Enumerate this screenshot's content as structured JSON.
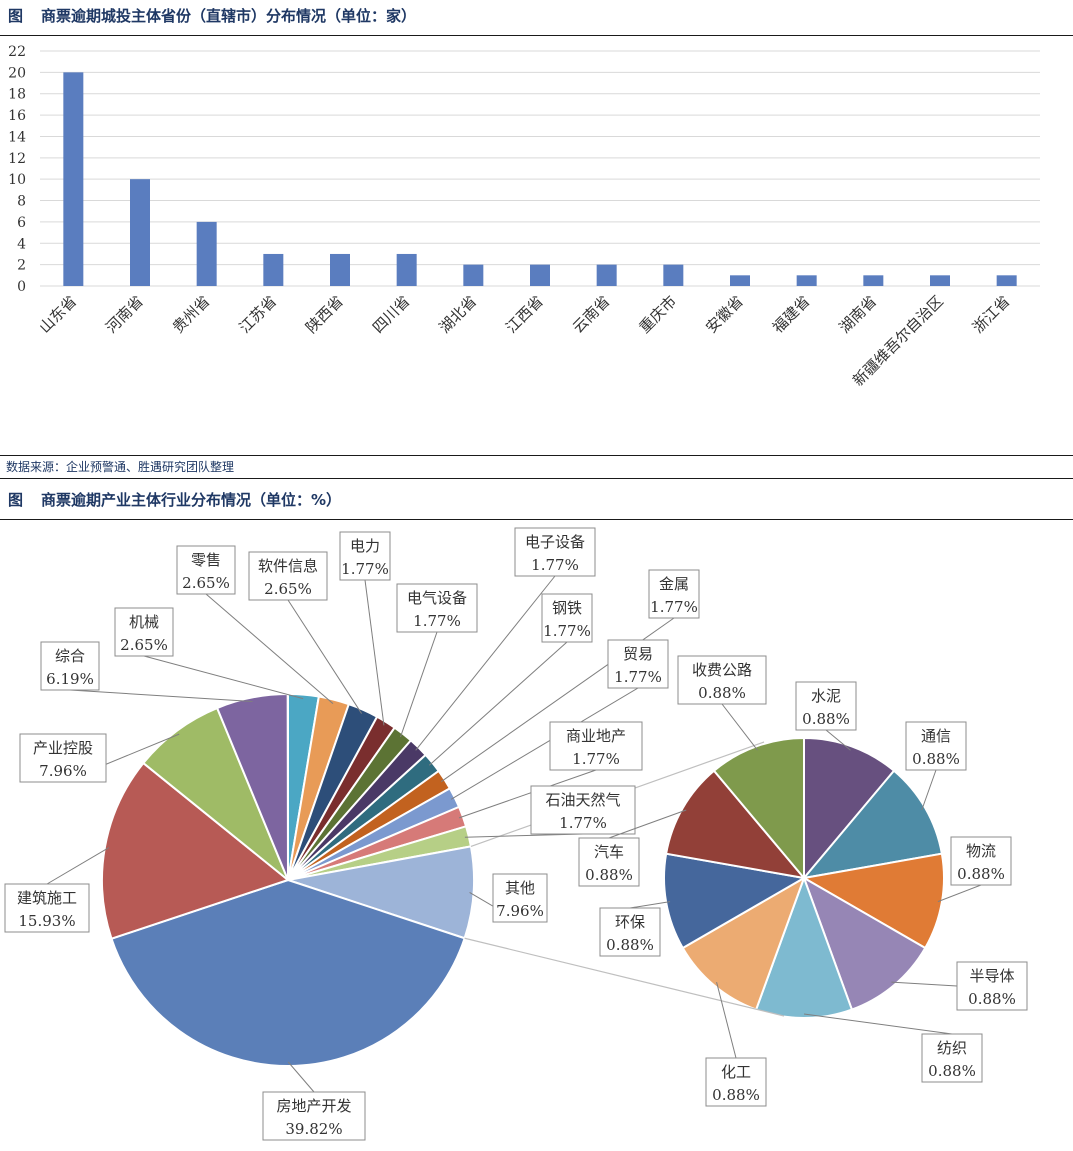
{
  "figure1": {
    "tag": "图",
    "title": "商票逾期城投主体省份（直辖市）分布情况（单位：家）"
  },
  "figure2": {
    "tag": "图",
    "title": "商票逾期产业主体行业分布情况（单位：%）"
  },
  "source_note": "数据来源：企业预警通、胜遇研究团队整理",
  "colors": {
    "bar": "#5a7dbf",
    "title": "#1f3864",
    "grid": "#d9d9d9"
  },
  "chart_data": [
    {
      "type": "bar",
      "categories": [
        "山东省",
        "河南省",
        "贵州省",
        "江苏省",
        "陕西省",
        "四川省",
        "湖北省",
        "江西省",
        "云南省",
        "重庆市",
        "安徽省",
        "福建省",
        "湖南省",
        "新疆维吾尔自治区",
        "浙江省"
      ],
      "values": [
        20,
        10,
        6,
        3,
        3,
        3,
        2,
        2,
        2,
        2,
        1,
        1,
        1,
        1,
        1
      ],
      "ylim": [
        0,
        22
      ],
      "yticks": [
        "0",
        "2",
        "4",
        "6",
        "8",
        "10",
        "12",
        "14",
        "16",
        "18",
        "20",
        "22"
      ],
      "grid": true
    },
    {
      "type": "pie",
      "subtype": "pie-of-pie",
      "main": [
        {
          "label": "房地产开发",
          "value": "39.82%",
          "pct": 39.82,
          "color": "#5b7fb8"
        },
        {
          "label": "建筑施工",
          "value": "15.93%",
          "pct": 15.93,
          "color": "#b75a55"
        },
        {
          "label": "产业控股",
          "value": "7.96%",
          "pct": 7.96,
          "color": "#9fbb66"
        },
        {
          "label": "综合",
          "value": "6.19%",
          "pct": 6.19,
          "color": "#7d65a0"
        },
        {
          "label": "机械",
          "value": "2.65%",
          "pct": 2.65,
          "color": "#4ba7c4"
        },
        {
          "label": "零售",
          "value": "2.65%",
          "pct": 2.65,
          "color": "#e89b57"
        },
        {
          "label": "软件信息",
          "value": "2.65%",
          "pct": 2.65,
          "color": "#2d4e79"
        },
        {
          "label": "电力",
          "value": "1.77%",
          "pct": 1.77,
          "color": "#7a2e2e"
        },
        {
          "label": "电气设备",
          "value": "1.77%",
          "pct": 1.77,
          "color": "#5c7334"
        },
        {
          "label": "电子设备",
          "value": "1.77%",
          "pct": 1.77,
          "color": "#4a3966"
        },
        {
          "label": "钢铁",
          "value": "1.77%",
          "pct": 1.77,
          "color": "#2f6c7f"
        },
        {
          "label": "金属",
          "value": "1.77%",
          "pct": 1.77,
          "color": "#c2621f"
        },
        {
          "label": "贸易",
          "value": "1.77%",
          "pct": 1.77,
          "color": "#7b99cf"
        },
        {
          "label": "商业地产",
          "value": "1.77%",
          "pct": 1.77,
          "color": "#d67a78"
        },
        {
          "label": "石油天然气",
          "value": "1.77%",
          "pct": 1.77,
          "color": "#b6cf86"
        },
        {
          "label": "其他",
          "value": "7.96%",
          "pct": 7.96,
          "color": "#9db4d8"
        }
      ],
      "secondary": [
        {
          "label": "水泥",
          "value": "0.88%",
          "pct": 0.88,
          "color": "#67507f"
        },
        {
          "label": "通信",
          "value": "0.88%",
          "pct": 0.88,
          "color": "#4e8ca6"
        },
        {
          "label": "物流",
          "value": "0.88%",
          "pct": 0.88,
          "color": "#e07b35"
        },
        {
          "label": "半导体",
          "value": "0.88%",
          "pct": 0.88,
          "color": "#9686b5"
        },
        {
          "label": "纺织",
          "value": "0.88%",
          "pct": 0.88,
          "color": "#7ebad0"
        },
        {
          "label": "化工",
          "value": "0.88%",
          "pct": 0.88,
          "color": "#ecab72"
        },
        {
          "label": "环保",
          "value": "0.88%",
          "pct": 0.88,
          "color": "#45679c"
        },
        {
          "label": "汽车",
          "value": "0.88%",
          "pct": 0.88,
          "color": "#924038"
        },
        {
          "label": "收费公路",
          "value": "0.88%",
          "pct": 0.88,
          "color": "#7f9a4c"
        }
      ]
    }
  ]
}
